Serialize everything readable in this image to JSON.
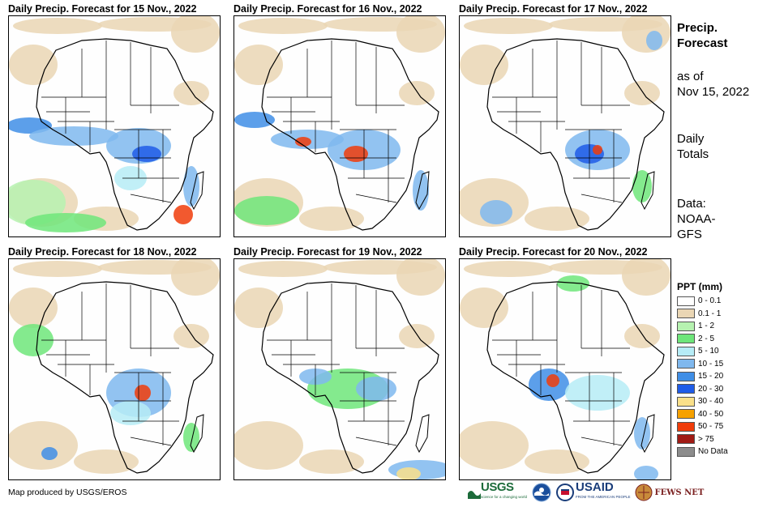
{
  "panels": [
    {
      "title": "Daily Precip. Forecast for 15 Nov., 2022",
      "variant": 0
    },
    {
      "title": "Daily Precip. Forecast for 16 Nov., 2022",
      "variant": 1
    },
    {
      "title": "Daily Precip. Forecast for 17 Nov., 2022",
      "variant": 2
    },
    {
      "title": "Daily Precip. Forecast for 18 Nov., 2022",
      "variant": 3
    },
    {
      "title": "Daily Precip. Forecast for 19 Nov., 2022",
      "variant": 4
    },
    {
      "title": "Daily Precip. Forecast for 20 Nov., 2022",
      "variant": 5
    }
  ],
  "sidebar": {
    "heading_line1": "Precip.",
    "heading_line2": "Forecast",
    "asof_line1": "as of",
    "asof_line2": "Nov 15, 2022",
    "totals_line1": "Daily",
    "totals_line2": "Totals",
    "data_line1": "Data:",
    "data_line2": "NOAA-",
    "data_line3": "GFS"
  },
  "legend": {
    "title": "PPT (mm)",
    "items": [
      {
        "label": "0 - 0.1",
        "color": "#ffffff"
      },
      {
        "label": "0.1 - 1",
        "color": "#ead6b4"
      },
      {
        "label": "1 - 2",
        "color": "#b6f2b0"
      },
      {
        "label": "2 - 5",
        "color": "#6ee67a"
      },
      {
        "label": "5 - 10",
        "color": "#b6ecf6"
      },
      {
        "label": "10 - 15",
        "color": "#7fb8ee"
      },
      {
        "label": "15 - 20",
        "color": "#3f8ee6"
      },
      {
        "label": "20 - 30",
        "color": "#1f5ce8"
      },
      {
        "label": "30 - 40",
        "color": "#fae08a"
      },
      {
        "label": "40 - 50",
        "color": "#f6a100"
      },
      {
        "label": "50 - 75",
        "color": "#f03c0a"
      },
      {
        "label": "> 75",
        "color": "#a01a14"
      },
      {
        "label": "No Data",
        "color": "#8c8c8c"
      }
    ]
  },
  "credit": "Map produced by USGS/EROS",
  "logos": {
    "usgs": "USGS",
    "usgs_tagline": "science for a changing world",
    "usaid": "USAID",
    "usaid_tagline": "FROM THE AMERICAN PEOPLE",
    "fews": "FEWS NET"
  }
}
